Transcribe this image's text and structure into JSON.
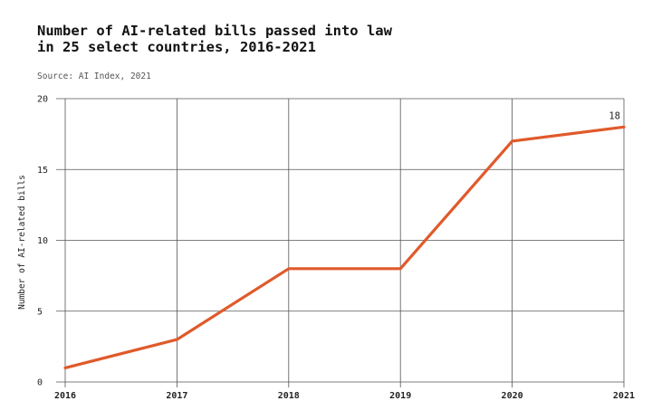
{
  "colors": {
    "accent": "#e05a2b",
    "grid": "#555555",
    "text": "#111111"
  },
  "chart_data": {
    "type": "line",
    "title_lines": [
      "Number of AI-related bills passed into law",
      "in 25 select countries, 2016-2021"
    ],
    "subtitle": "Source: AI Index, 2021",
    "xlabel": "",
    "ylabel": "Number of AI-related bills",
    "x": [
      "2016",
      "2017",
      "2018",
      "2019",
      "2020",
      "2021"
    ],
    "yticks": [
      "0",
      "5",
      "10",
      "15",
      "20"
    ],
    "ylim": [
      0,
      20
    ],
    "grid": true,
    "series": [
      {
        "values": [
          1,
          3,
          8,
          8,
          17,
          18
        ]
      }
    ],
    "data_labels": [
      {
        "index": 5,
        "text": "18"
      }
    ]
  }
}
